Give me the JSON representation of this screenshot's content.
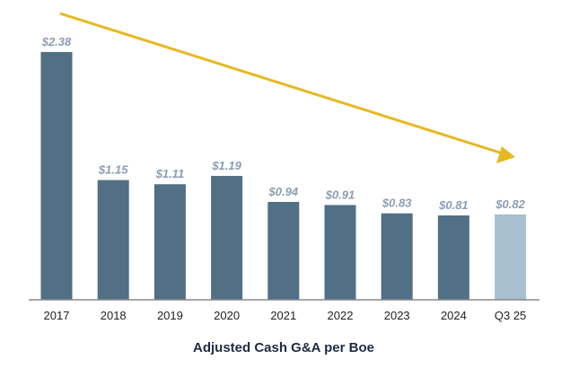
{
  "chart_data": {
    "type": "bar",
    "title": "Adjusted Cash G&A per Boe",
    "categories": [
      "2017",
      "2018",
      "2019",
      "2020",
      "2021",
      "2022",
      "2023",
      "2024",
      "Q3 25"
    ],
    "values": [
      2.38,
      1.15,
      1.11,
      1.19,
      0.94,
      0.91,
      0.83,
      0.81,
      0.82
    ],
    "labels": [
      "$2.38",
      "$1.15",
      "$1.11",
      "$1.19",
      "$0.94",
      "$0.91",
      "$0.83",
      "$0.81",
      "$0.82"
    ],
    "ylim": [
      0,
      2.6
    ],
    "grid": false,
    "trend_arrow": "downward",
    "colors": {
      "bar": "#516f85",
      "highlight_bar": "#a7bfcf",
      "label": "#8b9db4",
      "arrow": "#e6b822",
      "axis": "#888888"
    }
  }
}
